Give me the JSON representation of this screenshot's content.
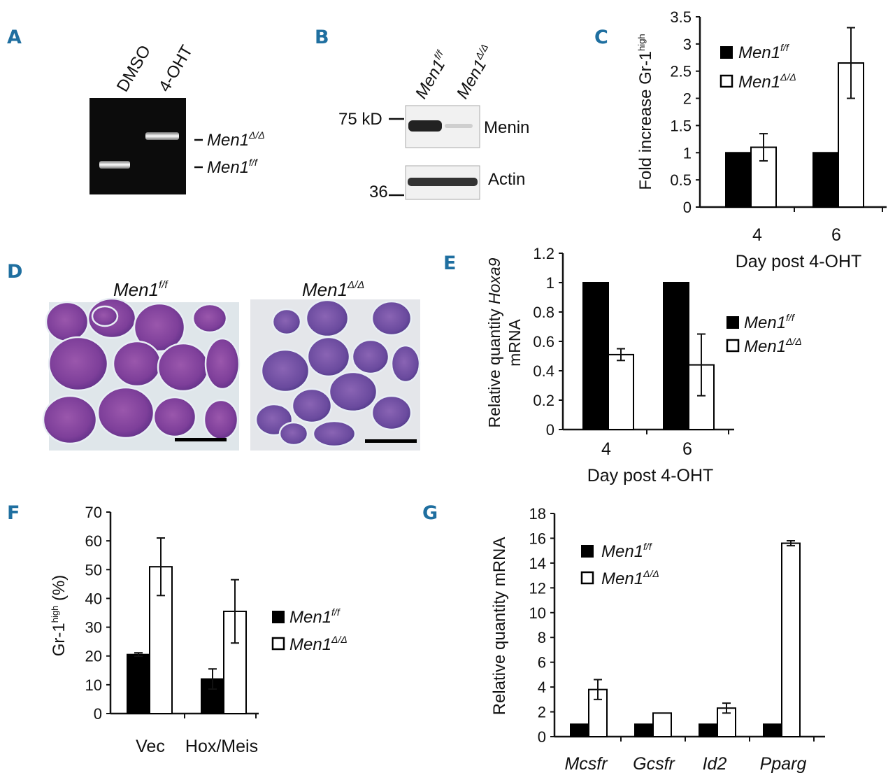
{
  "panels": {
    "A": {
      "letter": "A",
      "lanes": [
        "DMSO",
        "4-OHT"
      ],
      "bands": [
        {
          "gene": "Men1",
          "sup": "Δ/Δ"
        },
        {
          "gene": "Men1",
          "sup": "f/f"
        }
      ]
    },
    "B": {
      "letter": "B",
      "lanes": [
        {
          "gene": "Men1",
          "sup": "f/f"
        },
        {
          "gene": "Men1",
          "sup": "Δ/Δ"
        }
      ],
      "markers": [
        "75 kD",
        "36"
      ],
      "proteins": [
        "Menin",
        "Actin"
      ]
    },
    "D": {
      "letter": "D",
      "images": [
        {
          "gene": "Men1",
          "sup": "f/f"
        },
        {
          "gene": "Men1",
          "sup": "Δ/Δ"
        }
      ]
    }
  },
  "legend": {
    "series_a": {
      "gene": "Men1",
      "sup": "f/f"
    },
    "series_b": {
      "gene": "Men1",
      "sup": "Δ/Δ"
    }
  },
  "colors": {
    "series_a": "#000000",
    "series_b": "#ffffff",
    "panel_letter": "#1f6fa0"
  },
  "chart_data": [
    {
      "panel": "C",
      "type": "bar",
      "categories": [
        "4",
        "6"
      ],
      "series": [
        {
          "name": "Men1 f/f",
          "values": [
            1.0,
            1.0
          ]
        },
        {
          "name": "Men1 Δ/Δ",
          "values": [
            1.1,
            2.65
          ],
          "error": [
            0.25,
            0.65
          ]
        }
      ],
      "xlabel": "Day post 4-OHT",
      "ylabel": {
        "main": "Fold increase Gr-1",
        "sup": "high"
      },
      "ylim": [
        0,
        3.5
      ],
      "yticks": [
        "0",
        "0.5",
        "1",
        "1.5",
        "2",
        "2.5",
        "3",
        "3.5"
      ],
      "legend_position": "top-left"
    },
    {
      "panel": "E",
      "type": "bar",
      "categories": [
        "4",
        "6"
      ],
      "series": [
        {
          "name": "Men1 f/f",
          "values": [
            1.0,
            1.0
          ]
        },
        {
          "name": "Men1 Δ/Δ",
          "values": [
            0.51,
            0.44
          ],
          "error": [
            0.04,
            0.21
          ]
        }
      ],
      "xlabel": "Day post 4-OHT",
      "ylabel": {
        "line1_pre": "Relative quantity ",
        "line1_gene": "Hoxa9",
        "line2": "mRNA"
      },
      "ylim": [
        0,
        1.2
      ],
      "yticks": [
        "0",
        "0.2",
        "0.4",
        "0.6",
        "0.8",
        "1",
        "1.2"
      ],
      "legend_position": "right"
    },
    {
      "panel": "F",
      "type": "bar",
      "categories": [
        "Vec",
        "Hox/Meis"
      ],
      "series": [
        {
          "name": "Men1 f/f",
          "values": [
            20.5,
            12
          ],
          "error": [
            0.6,
            3.5
          ]
        },
        {
          "name": "Men1 Δ/Δ",
          "values": [
            51,
            35.5
          ],
          "error": [
            10,
            11
          ]
        }
      ],
      "ylabel": {
        "main": "Gr-1",
        "sup": "high",
        "suffix": " (%)"
      },
      "ylim": [
        0,
        70
      ],
      "yticks": [
        "0",
        "10",
        "20",
        "30",
        "40",
        "50",
        "60",
        "70"
      ],
      "legend_position": "right"
    },
    {
      "panel": "G",
      "type": "bar",
      "categories": [
        "Mcsfr",
        "Gcsfr",
        "Id2",
        "Pparg"
      ],
      "series": [
        {
          "name": "Men1 f/f",
          "values": [
            1,
            1,
            1,
            1
          ]
        },
        {
          "name": "Men1 Δ/Δ",
          "values": [
            3.8,
            1.9,
            2.3,
            15.6
          ],
          "error": [
            0.8,
            0,
            0.4,
            0.2
          ]
        }
      ],
      "ylabel": "Relative quantity mRNA",
      "ylim": [
        0,
        18
      ],
      "yticks": [
        "0",
        "2",
        "4",
        "6",
        "8",
        "10",
        "12",
        "14",
        "16",
        "18"
      ],
      "legend_position": "top-left"
    }
  ]
}
